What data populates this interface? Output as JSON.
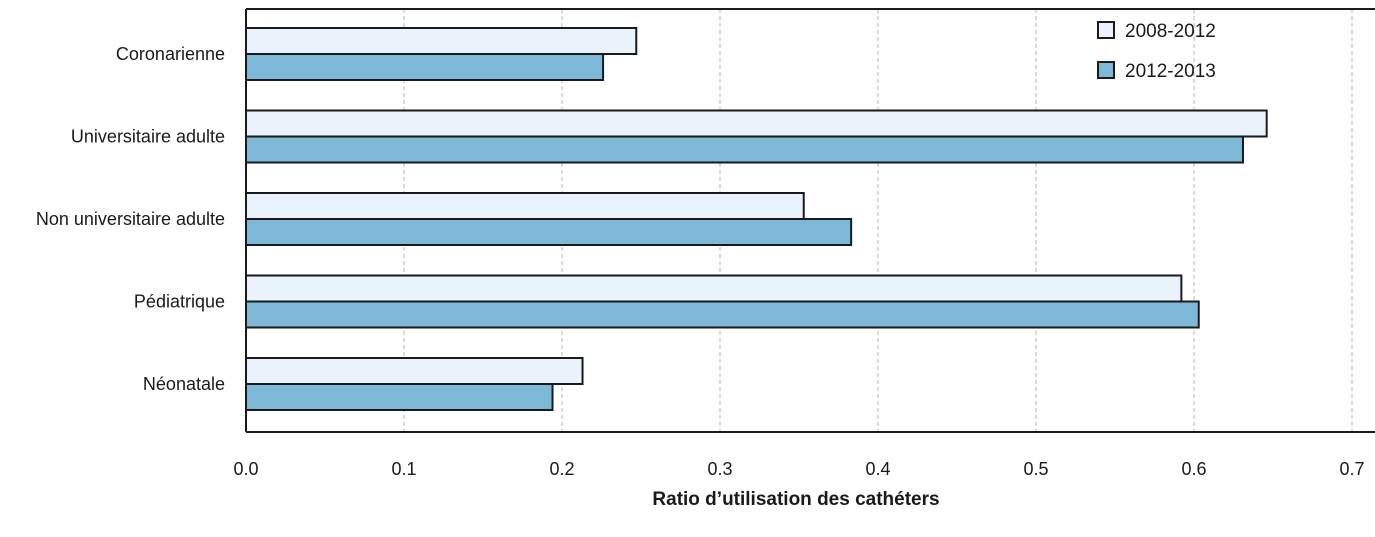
{
  "chart_data": {
    "type": "bar",
    "orientation": "horizontal",
    "categories": [
      "Coronarienne",
      "Universitaire adulte",
      "Non universitaire adulte",
      "Pédiatrique",
      "Néonatale"
    ],
    "series": [
      {
        "name": "2008-2012",
        "values": [
          0.247,
          0.646,
          0.353,
          0.592,
          0.213
        ],
        "color": "#eaf3fb"
      },
      {
        "name": "2012-2013",
        "values": [
          0.226,
          0.631,
          0.383,
          0.603,
          0.194
        ],
        "color": "#7db8d6"
      }
    ],
    "xlabel": "Ratio d’utilisation des cathéters",
    "ylabel": "",
    "xlim": [
      0.0,
      0.7
    ],
    "xticks": [
      "0.0",
      "0.1",
      "0.2",
      "0.3",
      "0.4",
      "0.5",
      "0.6",
      "0.7"
    ],
    "grid": "vertical dashed",
    "legend_position": "top-right"
  }
}
